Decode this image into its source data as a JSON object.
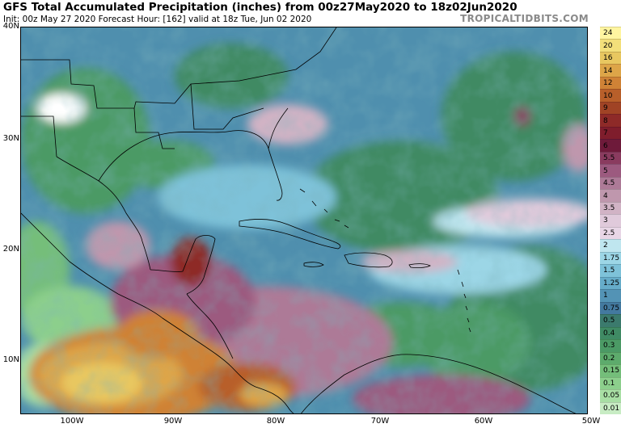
{
  "header": {
    "title": "GFS Total Accumulated Precipitation (inches) from 00z27May2020 to 18z02Jun2020",
    "subtitle": "Init: 00z May 27 2020   Forecast Hour: [162]   valid at 18z Tue, Jun 02 2020",
    "brand": "TROPICALTIDBITS.COM"
  },
  "axes": {
    "lat_labels": [
      "40N",
      "30N",
      "20N",
      "10N"
    ],
    "lon_labels": [
      "100W",
      "90W",
      "80W",
      "70W",
      "60W",
      "50W"
    ]
  },
  "colorbar": {
    "labels": [
      "24",
      "20",
      "16",
      "14",
      "12",
      "10",
      "9",
      "8",
      "7",
      "6",
      "5.5",
      "5",
      "4.5",
      "4",
      "3.5",
      "3",
      "2.5",
      "2",
      "1.75",
      "1.5",
      "1.25",
      "1",
      "0.75",
      "0.5",
      "0.4",
      "0.3",
      "0.2",
      "0.15",
      "0.1",
      "0.05",
      "0.01"
    ],
    "colors": [
      "#fff5a0",
      "#f3df7a",
      "#e8c760",
      "#dda548",
      "#cf8236",
      "#b85f2a",
      "#a04325",
      "#8e2a28",
      "#7f1d2c",
      "#6e1a3a",
      "#8a3b5f",
      "#9c5a7f",
      "#ad7a97",
      "#bf97ad",
      "#d1b3c5",
      "#e0cadb",
      "#e8d6e6",
      "#bfe6ef",
      "#9cd6e6",
      "#7ec2d9",
      "#66acc9",
      "#5393b5",
      "#43799f",
      "#3b7a6d",
      "#3f8a64",
      "#4b9a65",
      "#5dab6c",
      "#74be7a",
      "#8ccf8c",
      "#a8dfa4",
      "#c8ecc4"
    ]
  },
  "map": {
    "region": "Gulf of Mexico, Central America and Caribbean"
  }
}
